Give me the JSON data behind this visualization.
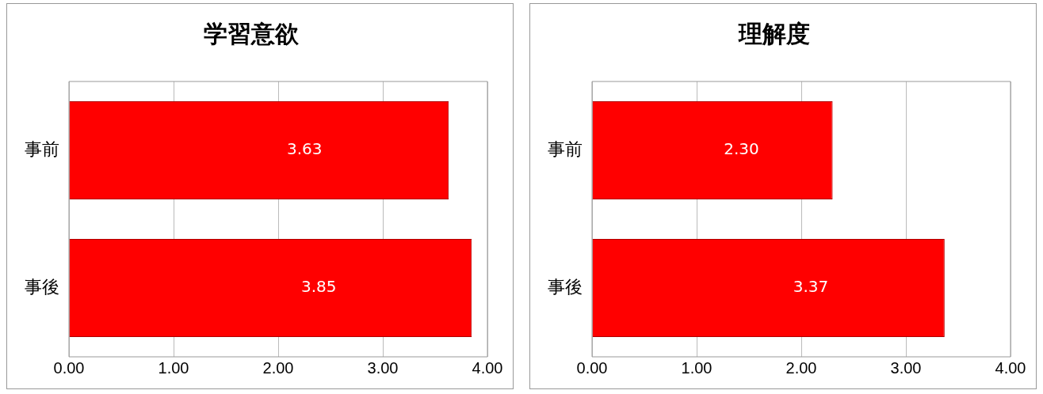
{
  "chart_data": [
    {
      "type": "bar",
      "orientation": "horizontal",
      "title": "学習意欲",
      "categories": [
        "事前",
        "事後"
      ],
      "values": [
        3.63,
        3.85
      ],
      "value_labels": [
        "3.63",
        "3.85"
      ],
      "color": "#ff0000",
      "xlim": [
        0,
        4
      ],
      "xticks": [
        {
          "value": 0,
          "label": "0.00"
        },
        {
          "value": 1,
          "label": "1.00"
        },
        {
          "value": 2,
          "label": "2.00"
        },
        {
          "value": 3,
          "label": "3.00"
        },
        {
          "value": 4,
          "label": "4.00"
        }
      ],
      "grid": "x",
      "legend": false
    },
    {
      "type": "bar",
      "orientation": "horizontal",
      "title": "理解度",
      "categories": [
        "事前",
        "事後"
      ],
      "values": [
        2.3,
        3.37
      ],
      "value_labels": [
        "2.30",
        "3.37"
      ],
      "color": "#ff0000",
      "xlim": [
        0,
        4
      ],
      "xticks": [
        {
          "value": 0,
          "label": "0.00"
        },
        {
          "value": 1,
          "label": "1.00"
        },
        {
          "value": 2,
          "label": "2.00"
        },
        {
          "value": 3,
          "label": "3.00"
        },
        {
          "value": 4,
          "label": "4.00"
        }
      ],
      "grid": "x",
      "legend": false
    }
  ]
}
